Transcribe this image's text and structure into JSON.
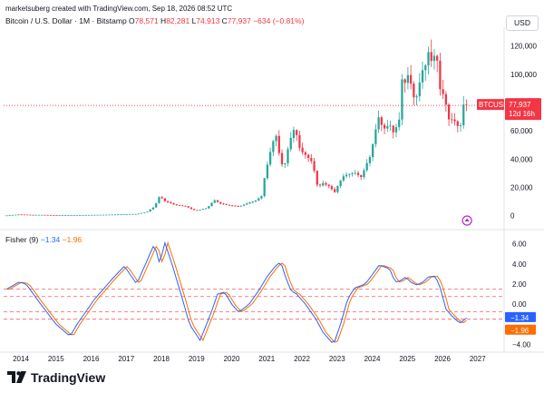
{
  "header": {
    "creator": "marketsuberg created with TradingView.com, Sep 18, 2026 08:52 UTC",
    "symbol": "Bitcoin / U.S. Dollar · 1M · Bitstamp",
    "open_label": "O",
    "open": "78,571",
    "high_label": "H",
    "high": "82,281",
    "low_label": "L",
    "low": "74,913",
    "close_label": "C",
    "close": "77,937",
    "change": "−634 (−0.81%)",
    "currency": "USD"
  },
  "colors": {
    "up": "#26a69a",
    "down": "#f23645",
    "fisher": "#2962ff",
    "trigger": "#ff6d00",
    "level": "#f23645"
  },
  "price_badge": {
    "symbol": "BTCUSD",
    "value": "77,937",
    "countdown": "12d 16h"
  },
  "fisher_legend": {
    "name": "Fisher (9)",
    "fisher": "−1.34",
    "trigger": "−1.96"
  },
  "footer": {
    "brand": "TradingView",
    "icon": "tradingview-logo-icon"
  },
  "chart_data": [
    {
      "type": "candlestick",
      "title": "Bitcoin / U.S. Dollar · 1M · Bitstamp",
      "x_unit": "year (fractional, monthly candles)",
      "y_ticks": [
        {
          "value": 0,
          "label": "0"
        },
        {
          "value": 20000,
          "label": "20,000"
        },
        {
          "value": 40000,
          "label": "40,000"
        },
        {
          "value": 60000,
          "label": "60,000"
        },
        {
          "value": 80000,
          "label": "80,000"
        },
        {
          "value": 100000,
          "label": "100,000"
        },
        {
          "value": 120000,
          "label": "120,000"
        }
      ],
      "ylim": [
        -8000,
        132000
      ],
      "last_price": 77937,
      "x_ticks": [
        "2014",
        "2015",
        "2016",
        "2017",
        "2018",
        "2019",
        "2020",
        "2021",
        "2022",
        "2023",
        "2024",
        "2025",
        "2026",
        "2027"
      ],
      "keyframes_close": [
        [
          2013.6,
          120
        ],
        [
          2013.95,
          800
        ],
        [
          2014.3,
          500
        ],
        [
          2014.6,
          500
        ],
        [
          2015.0,
          220
        ],
        [
          2015.5,
          260
        ],
        [
          2015.95,
          430
        ],
        [
          2016.5,
          650
        ],
        [
          2016.95,
          960
        ],
        [
          2017.3,
          1100
        ],
        [
          2017.6,
          2800
        ],
        [
          2017.8,
          6400
        ],
        [
          2017.95,
          13800
        ],
        [
          2018.1,
          10300
        ],
        [
          2018.4,
          7500
        ],
        [
          2018.7,
          6600
        ],
        [
          2018.9,
          4000
        ],
        [
          2019.0,
          3700
        ],
        [
          2019.3,
          5300
        ],
        [
          2019.5,
          11000
        ],
        [
          2019.7,
          8300
        ],
        [
          2019.95,
          7200
        ],
        [
          2020.2,
          6400
        ],
        [
          2020.5,
          9200
        ],
        [
          2020.7,
          10800
        ],
        [
          2020.85,
          13800
        ],
        [
          2020.95,
          29000
        ],
        [
          2021.1,
          45000
        ],
        [
          2021.25,
          58800
        ],
        [
          2021.4,
          37000
        ],
        [
          2021.5,
          35000
        ],
        [
          2021.6,
          47000
        ],
        [
          2021.75,
          61300
        ],
        [
          2021.85,
          57000
        ],
        [
          2021.95,
          46200
        ],
        [
          2022.1,
          43000
        ],
        [
          2022.3,
          37600
        ],
        [
          2022.45,
          19900
        ],
        [
          2022.6,
          23000
        ],
        [
          2022.8,
          20400
        ],
        [
          2022.9,
          17000
        ],
        [
          2022.95,
          16500
        ],
        [
          2023.05,
          23100
        ],
        [
          2023.2,
          28400
        ],
        [
          2023.5,
          30400
        ],
        [
          2023.7,
          27000
        ],
        [
          2023.8,
          34600
        ],
        [
          2023.95,
          42300
        ],
        [
          2024.1,
          61000
        ],
        [
          2024.2,
          71300
        ],
        [
          2024.3,
          60600
        ],
        [
          2024.5,
          64600
        ],
        [
          2024.6,
          58900
        ],
        [
          2024.7,
          63300
        ],
        [
          2024.8,
          70300
        ],
        [
          2024.85,
          96400
        ],
        [
          2024.95,
          93400
        ],
        [
          2025.05,
          102400
        ],
        [
          2025.15,
          84300
        ],
        [
          2025.25,
          82500
        ],
        [
          2025.35,
          94200
        ],
        [
          2025.45,
          104600
        ],
        [
          2025.55,
          107100
        ],
        [
          2025.6,
          115700
        ],
        [
          2025.7,
          108200
        ],
        [
          2025.78,
          114000
        ],
        [
          2025.85,
          109600
        ],
        [
          2025.9,
          90400
        ],
        [
          2026.0,
          87500
        ],
        [
          2026.1,
          78500
        ],
        [
          2026.2,
          66000
        ],
        [
          2026.3,
          69000
        ],
        [
          2026.4,
          64500
        ],
        [
          2026.5,
          61000
        ],
        [
          2026.6,
          78571
        ],
        [
          2026.7,
          77937
        ]
      ]
    },
    {
      "type": "line",
      "name": "Fisher (9)",
      "series": [
        {
          "name": "Fisher",
          "color": "#2962ff"
        },
        {
          "name": "Trigger",
          "color": "#ff6d00"
        }
      ],
      "y_ticks": [
        {
          "value": 6,
          "label": "6.00"
        },
        {
          "value": 4,
          "label": "4.00"
        },
        {
          "value": 2,
          "label": "2.00"
        },
        {
          "value": 0,
          "label": "0.00"
        },
        {
          "value": -4,
          "label": "−4.00"
        }
      ],
      "ylim": [
        -4.6,
        6.6
      ],
      "levels": [
        1.5,
        0.75,
        -0.75,
        -1.5
      ],
      "last_fisher": -1.34,
      "last_trigger": -1.96,
      "keyframes_fisher": [
        [
          2013.6,
          1.5
        ],
        [
          2013.95,
          2.2
        ],
        [
          2014.15,
          2.0
        ],
        [
          2014.5,
          0.3
        ],
        [
          2015.0,
          -2.0
        ],
        [
          2015.4,
          -3.2
        ],
        [
          2015.6,
          -2.0
        ],
        [
          2016.1,
          0.5
        ],
        [
          2016.6,
          2.5
        ],
        [
          2016.95,
          3.8
        ],
        [
          2017.1,
          3.0
        ],
        [
          2017.3,
          2.0
        ],
        [
          2017.55,
          4.0
        ],
        [
          2017.8,
          6.0
        ],
        [
          2017.95,
          4.0
        ],
        [
          2018.1,
          6.1
        ],
        [
          2018.3,
          4.0
        ],
        [
          2018.6,
          0.5
        ],
        [
          2018.8,
          -2.0
        ],
        [
          2019.1,
          -3.6
        ],
        [
          2019.4,
          -1.0
        ],
        [
          2019.6,
          1.0
        ],
        [
          2019.8,
          1.2
        ],
        [
          2020.0,
          0.0
        ],
        [
          2020.2,
          -0.8
        ],
        [
          2020.5,
          0.0
        ],
        [
          2020.8,
          1.5
        ],
        [
          2021.0,
          2.7
        ],
        [
          2021.25,
          3.8
        ],
        [
          2021.4,
          4.2
        ],
        [
          2021.55,
          2.5
        ],
        [
          2021.7,
          1.3
        ],
        [
          2021.85,
          1.0
        ],
        [
          2022.1,
          0.0
        ],
        [
          2022.4,
          -1.5
        ],
        [
          2022.6,
          -2.8
        ],
        [
          2022.9,
          -4.0
        ],
        [
          2023.1,
          -2.0
        ],
        [
          2023.3,
          0.5
        ],
        [
          2023.5,
          1.6
        ],
        [
          2023.8,
          2.0
        ],
        [
          2024.0,
          2.9
        ],
        [
          2024.2,
          3.9
        ],
        [
          2024.5,
          3.5
        ],
        [
          2024.65,
          2.2
        ],
        [
          2024.8,
          2.3
        ],
        [
          2024.95,
          2.7
        ],
        [
          2025.1,
          2.2
        ],
        [
          2025.25,
          1.9
        ],
        [
          2025.45,
          2.2
        ],
        [
          2025.6,
          2.7
        ],
        [
          2025.8,
          2.8
        ],
        [
          2025.95,
          1.5
        ],
        [
          2026.1,
          -0.5
        ],
        [
          2026.3,
          -1.3
        ],
        [
          2026.5,
          -1.9
        ],
        [
          2026.7,
          -1.34
        ]
      ]
    }
  ]
}
